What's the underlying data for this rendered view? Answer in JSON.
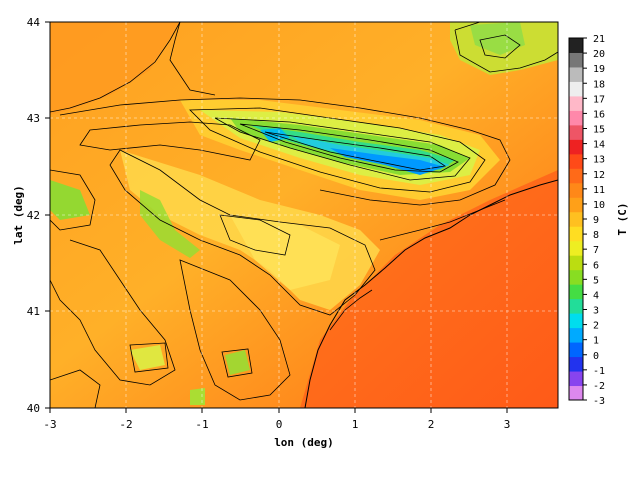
{
  "map": {
    "xlabel": "lon (deg)",
    "ylabel": "lat (deg)",
    "x_ticks": [
      "-3",
      "-2",
      "-1",
      "0",
      "1",
      "2",
      "3"
    ],
    "y_ticks": [
      "40",
      "41",
      "42",
      "43",
      "44"
    ],
    "lon_range": [
      -3,
      3.7
    ],
    "lat_range": [
      40,
      44
    ],
    "grid": "dashed",
    "field": "surface temperature shaded with black contour lines"
  },
  "colorbar": {
    "label": "T (C)",
    "ticks": [
      "21",
      "20",
      "19",
      "18",
      "17",
      "16",
      "15",
      "14",
      "13",
      "12",
      "11",
      "10",
      "9",
      "8",
      "7",
      "6",
      "5",
      "4",
      "3",
      "2",
      "1",
      "0",
      "-1",
      "-2",
      "-3"
    ],
    "min": -3,
    "max": 21,
    "colors": [
      "#dd88ee",
      "#8844ee",
      "#2233ee",
      "#0066ff",
      "#00aaff",
      "#00ddee",
      "#22dd99",
      "#44dd44",
      "#88dd22",
      "#bbdd11",
      "#eeee22",
      "#ffdd22",
      "#ffc020",
      "#ffa018",
      "#ff8818",
      "#ff6a18",
      "#ff4a18",
      "#ee2222",
      "#ee5566",
      "#ff88aa",
      "#ffb8c8",
      "#eeeeee",
      "#bbbbbb",
      "#777777",
      "#222222"
    ]
  }
}
